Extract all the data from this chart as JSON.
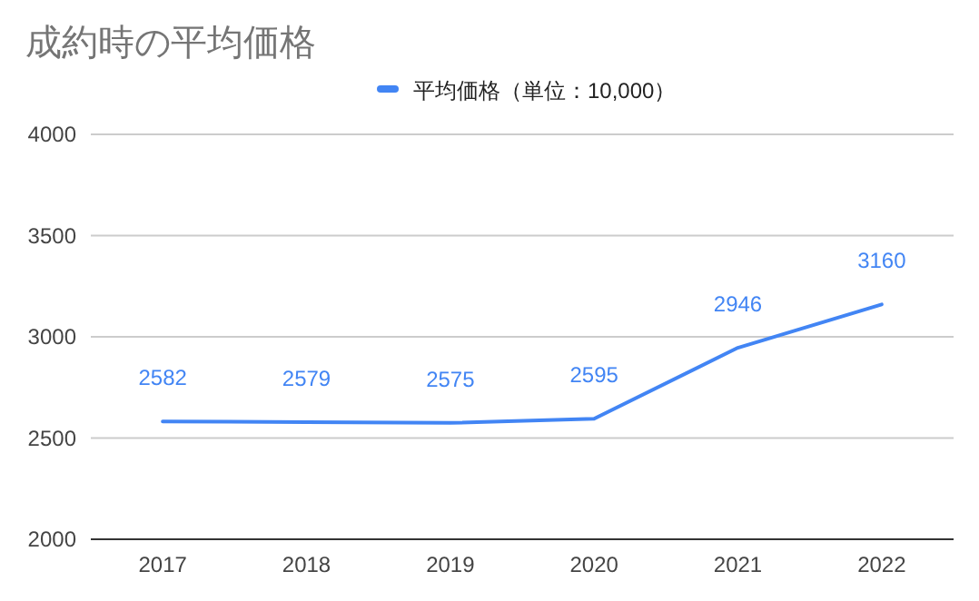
{
  "chart_data": {
    "type": "line",
    "title": "成約時の平均価格",
    "categories": [
      "2017",
      "2018",
      "2019",
      "2020",
      "2021",
      "2022"
    ],
    "series": [
      {
        "name": "平均価格（単位：10,000）",
        "color": "#4285f4",
        "values": [
          2582,
          2579,
          2575,
          2595,
          2946,
          3160
        ]
      }
    ],
    "ylim": [
      2000,
      4000
    ],
    "yticks": [
      2000,
      2500,
      3000,
      3500,
      4000
    ],
    "grid": "y",
    "legend": "top",
    "data_labels": true,
    "marker": "none",
    "line_style": "solid"
  }
}
